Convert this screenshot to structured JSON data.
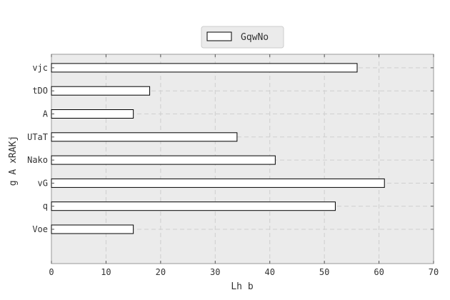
{
  "chart_data": {
    "type": "bar",
    "orientation": "horizontal",
    "categories": [
      "Voe",
      "q",
      "vG",
      "Nako",
      "UTaT",
      "A",
      "tDO",
      "vjc"
    ],
    "series": [
      {
        "name": "GqwNo",
        "values": [
          15,
          52,
          61,
          41,
          34,
          15,
          18,
          56
        ]
      }
    ],
    "xlabel": "Lh b",
    "ylabel": "g A xRAKj",
    "xlim": [
      0,
      70
    ],
    "xticks": [
      0,
      10,
      20,
      30,
      40,
      50,
      60,
      70
    ],
    "grid": true,
    "legend_position": "top-center",
    "colors": {
      "bar_fill": "#ffffff",
      "bar_edge": "#000000",
      "plot_background": "#ebebeb",
      "grid": "#cfcfcf"
    }
  }
}
